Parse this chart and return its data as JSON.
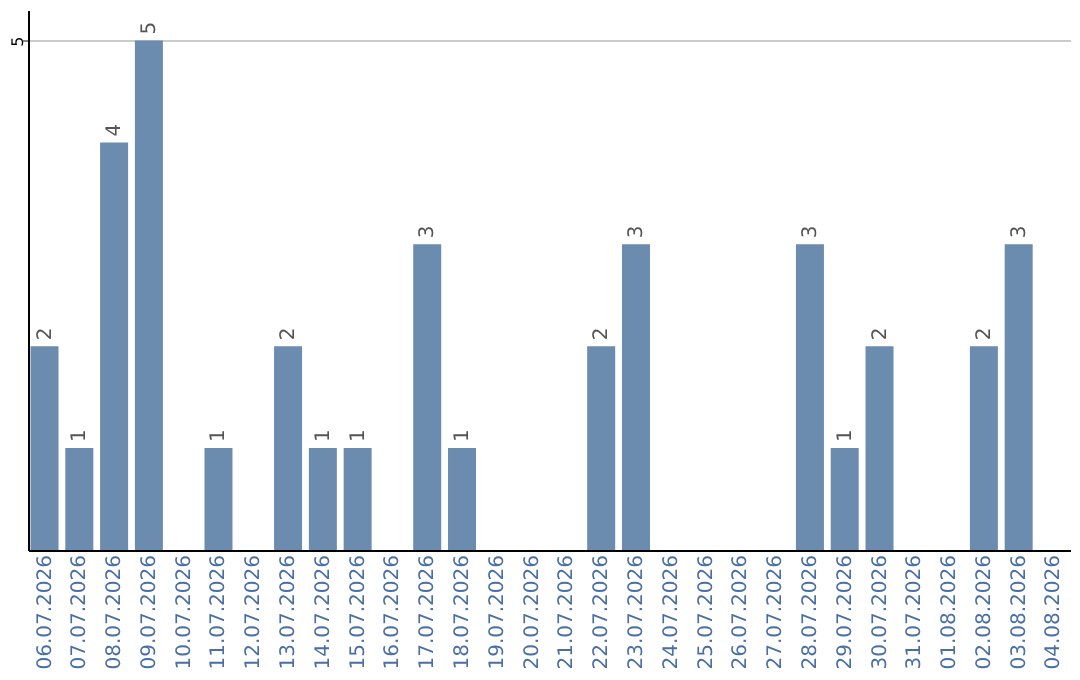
{
  "chart_data": {
    "type": "bar",
    "categories": [
      "06.07.2026",
      "07.07.2026",
      "08.07.2026",
      "09.07.2026",
      "10.07.2026",
      "11.07.2026",
      "12.07.2026",
      "13.07.2026",
      "14.07.2026",
      "15.07.2026",
      "16.07.2026",
      "17.07.2026",
      "18.07.2026",
      "19.07.2026",
      "20.07.2026",
      "21.07.2026",
      "22.07.2026",
      "23.07.2026",
      "24.07.2026",
      "25.07.2026",
      "26.07.2026",
      "27.07.2026",
      "28.07.2026",
      "29.07.2026",
      "30.07.2026",
      "31.07.2026",
      "01.08.2026",
      "02.08.2026",
      "03.08.2026",
      "04.08.2026"
    ],
    "values": [
      2,
      1,
      4,
      5,
      0,
      1,
      0,
      2,
      1,
      1,
      0,
      3,
      1,
      0,
      0,
      0,
      2,
      3,
      0,
      0,
      0,
      0,
      3,
      1,
      2,
      0,
      0,
      2,
      3,
      0
    ],
    "value_labels": [
      "2",
      "1",
      "4",
      "5",
      null,
      "1",
      null,
      "2",
      "1",
      "1",
      null,
      "3",
      "1",
      null,
      null,
      null,
      "2",
      "3",
      null,
      null,
      null,
      null,
      "3",
      "1",
      "2",
      null,
      null,
      "2",
      "3",
      null
    ],
    "color": "#6b8cae",
    "ylim": [
      0,
      5.3
    ],
    "yticks": [
      5
    ],
    "grid": "y"
  }
}
